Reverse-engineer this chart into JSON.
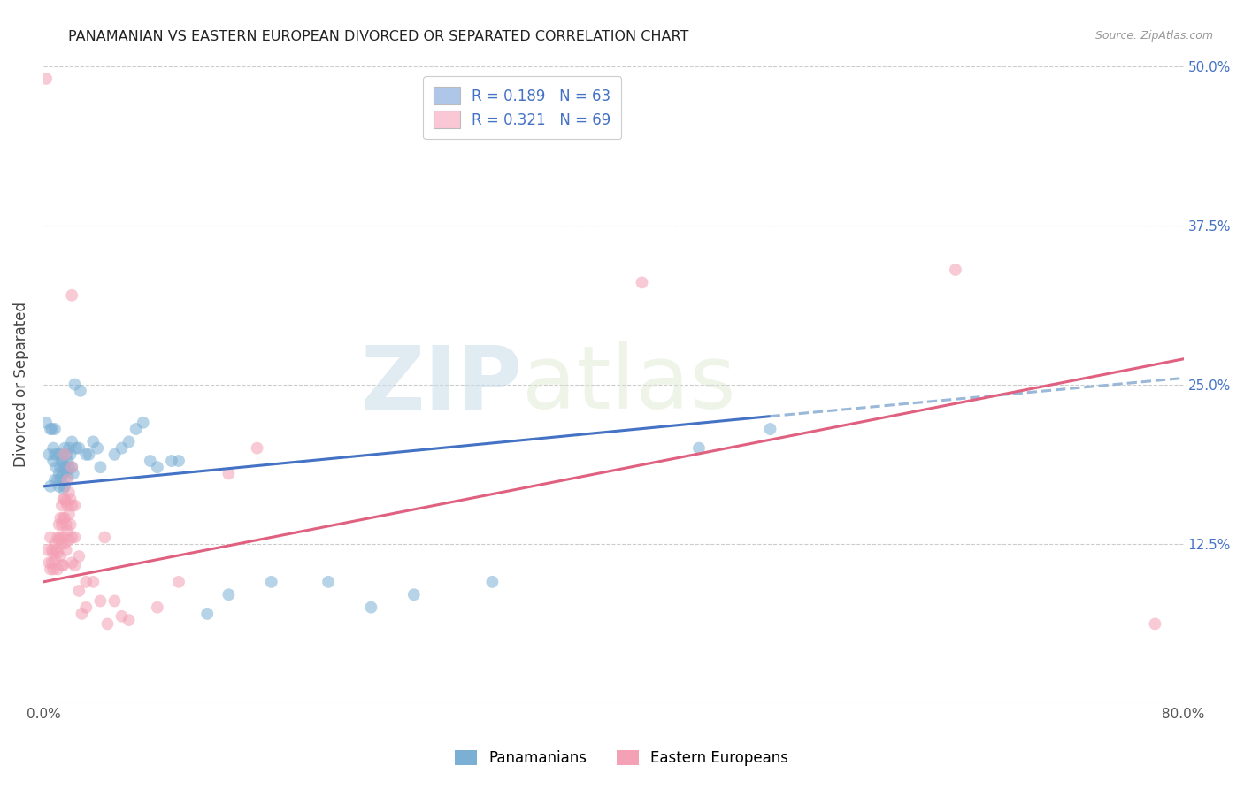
{
  "title": "PANAMANIAN VS EASTERN EUROPEAN DIVORCED OR SEPARATED CORRELATION CHART",
  "source": "Source: ZipAtlas.com",
  "ylabel": "Divorced or Separated",
  "blue_color": "#7bafd4",
  "blue_fill": "#aec6e8",
  "pink_color": "#f4a0b5",
  "pink_fill": "#f9c8d4",
  "blue_line_color": "#4472c4",
  "pink_line_color": "#e06080",
  "blue_dashed_color": "#9ab8d8",
  "right_tick_color": "#4472c4",
  "grid_color": "#cccccc",
  "watermark_zip": "ZIP",
  "watermark_atlas": "atlas",
  "xlim": [
    0.0,
    0.8
  ],
  "ylim": [
    0.0,
    0.5
  ],
  "blue_line": {
    "x0": 0.0,
    "y0": 0.17,
    "x1": 0.51,
    "y1": 0.225,
    "xd": 0.8,
    "yd": 0.255
  },
  "pink_line": {
    "x0": 0.0,
    "y0": 0.095,
    "x1": 0.8,
    "y1": 0.27
  },
  "blue_scatter": [
    [
      0.002,
      0.22
    ],
    [
      0.004,
      0.195
    ],
    [
      0.005,
      0.215
    ],
    [
      0.005,
      0.17
    ],
    [
      0.006,
      0.215
    ],
    [
      0.007,
      0.2
    ],
    [
      0.007,
      0.19
    ],
    [
      0.008,
      0.215
    ],
    [
      0.008,
      0.195
    ],
    [
      0.008,
      0.175
    ],
    [
      0.009,
      0.185
    ],
    [
      0.01,
      0.175
    ],
    [
      0.01,
      0.195
    ],
    [
      0.011,
      0.18
    ],
    [
      0.011,
      0.17
    ],
    [
      0.012,
      0.195
    ],
    [
      0.012,
      0.185
    ],
    [
      0.012,
      0.175
    ],
    [
      0.013,
      0.19
    ],
    [
      0.013,
      0.178
    ],
    [
      0.014,
      0.188
    ],
    [
      0.014,
      0.18
    ],
    [
      0.014,
      0.168
    ],
    [
      0.015,
      0.2
    ],
    [
      0.015,
      0.185
    ],
    [
      0.015,
      0.17
    ],
    [
      0.016,
      0.195
    ],
    [
      0.016,
      0.182
    ],
    [
      0.017,
      0.19
    ],
    [
      0.017,
      0.178
    ],
    [
      0.018,
      0.2
    ],
    [
      0.018,
      0.185
    ],
    [
      0.019,
      0.195
    ],
    [
      0.02,
      0.205
    ],
    [
      0.02,
      0.185
    ],
    [
      0.021,
      0.18
    ],
    [
      0.022,
      0.25
    ],
    [
      0.023,
      0.2
    ],
    [
      0.025,
      0.2
    ],
    [
      0.026,
      0.245
    ],
    [
      0.03,
      0.195
    ],
    [
      0.032,
      0.195
    ],
    [
      0.035,
      0.205
    ],
    [
      0.038,
      0.2
    ],
    [
      0.04,
      0.185
    ],
    [
      0.05,
      0.195
    ],
    [
      0.055,
      0.2
    ],
    [
      0.06,
      0.205
    ],
    [
      0.065,
      0.215
    ],
    [
      0.07,
      0.22
    ],
    [
      0.075,
      0.19
    ],
    [
      0.08,
      0.185
    ],
    [
      0.09,
      0.19
    ],
    [
      0.095,
      0.19
    ],
    [
      0.115,
      0.07
    ],
    [
      0.13,
      0.085
    ],
    [
      0.16,
      0.095
    ],
    [
      0.2,
      0.095
    ],
    [
      0.23,
      0.075
    ],
    [
      0.26,
      0.085
    ],
    [
      0.315,
      0.095
    ],
    [
      0.46,
      0.2
    ],
    [
      0.51,
      0.215
    ]
  ],
  "pink_scatter": [
    [
      0.002,
      0.49
    ],
    [
      0.003,
      0.12
    ],
    [
      0.004,
      0.11
    ],
    [
      0.005,
      0.13
    ],
    [
      0.005,
      0.105
    ],
    [
      0.006,
      0.12
    ],
    [
      0.006,
      0.11
    ],
    [
      0.007,
      0.118
    ],
    [
      0.007,
      0.105
    ],
    [
      0.008,
      0.125
    ],
    [
      0.008,
      0.112
    ],
    [
      0.009,
      0.12
    ],
    [
      0.01,
      0.13
    ],
    [
      0.01,
      0.118
    ],
    [
      0.01,
      0.105
    ],
    [
      0.011,
      0.14
    ],
    [
      0.011,
      0.128
    ],
    [
      0.012,
      0.145
    ],
    [
      0.012,
      0.13
    ],
    [
      0.012,
      0.115
    ],
    [
      0.013,
      0.155
    ],
    [
      0.013,
      0.14
    ],
    [
      0.013,
      0.125
    ],
    [
      0.013,
      0.108
    ],
    [
      0.014,
      0.16
    ],
    [
      0.014,
      0.145
    ],
    [
      0.014,
      0.13
    ],
    [
      0.014,
      0.108
    ],
    [
      0.015,
      0.195
    ],
    [
      0.015,
      0.16
    ],
    [
      0.015,
      0.145
    ],
    [
      0.015,
      0.125
    ],
    [
      0.016,
      0.158
    ],
    [
      0.016,
      0.14
    ],
    [
      0.016,
      0.12
    ],
    [
      0.017,
      0.175
    ],
    [
      0.017,
      0.155
    ],
    [
      0.017,
      0.135
    ],
    [
      0.018,
      0.165
    ],
    [
      0.018,
      0.148
    ],
    [
      0.018,
      0.128
    ],
    [
      0.019,
      0.16
    ],
    [
      0.019,
      0.14
    ],
    [
      0.02,
      0.32
    ],
    [
      0.02,
      0.185
    ],
    [
      0.02,
      0.155
    ],
    [
      0.02,
      0.13
    ],
    [
      0.02,
      0.11
    ],
    [
      0.022,
      0.155
    ],
    [
      0.022,
      0.13
    ],
    [
      0.022,
      0.108
    ],
    [
      0.025,
      0.115
    ],
    [
      0.025,
      0.088
    ],
    [
      0.027,
      0.07
    ],
    [
      0.03,
      0.095
    ],
    [
      0.03,
      0.075
    ],
    [
      0.035,
      0.095
    ],
    [
      0.04,
      0.08
    ],
    [
      0.043,
      0.13
    ],
    [
      0.045,
      0.062
    ],
    [
      0.05,
      0.08
    ],
    [
      0.055,
      0.068
    ],
    [
      0.06,
      0.065
    ],
    [
      0.08,
      0.075
    ],
    [
      0.095,
      0.095
    ],
    [
      0.13,
      0.18
    ],
    [
      0.15,
      0.2
    ],
    [
      0.42,
      0.33
    ],
    [
      0.64,
      0.34
    ],
    [
      0.78,
      0.062
    ]
  ]
}
